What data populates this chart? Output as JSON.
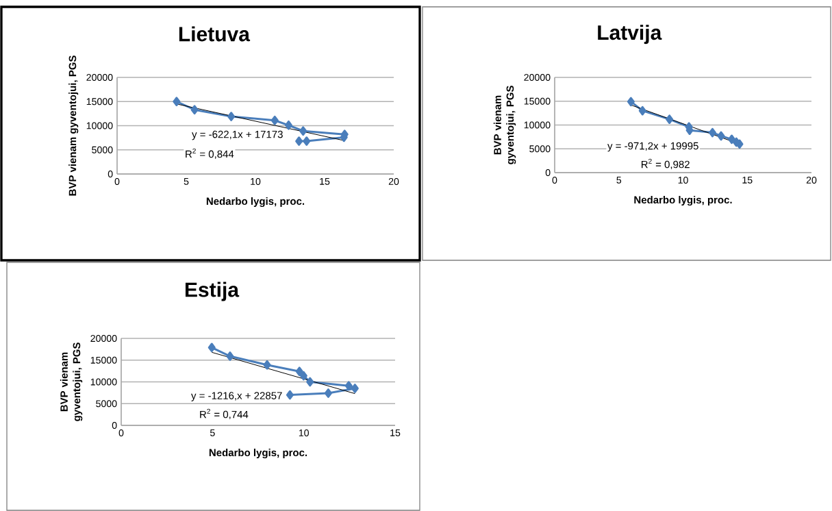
{
  "chart_data": [
    {
      "type": "line",
      "title": "Lietuva",
      "xlabel": "Nedarbo lygis, proc.",
      "ylabel": "BVP vienam gyventojui, PGS",
      "xlim": [
        0,
        20
      ],
      "xticks": [
        0,
        5,
        10,
        15,
        20
      ],
      "ylim": [
        0,
        20000
      ],
      "yticks": [
        0,
        5000,
        10000,
        15000,
        20000
      ],
      "grid": "y",
      "legend": false,
      "annotations": [
        "y = -622,1x + 17173",
        "R$^{2}$ = 0,844"
      ],
      "series": [
        {
          "color": "#4a7ebb",
          "marker": "diamond",
          "x": [
            4.3,
            5.6,
            8.25,
            11.4,
            12.4,
            13.45,
            16.45,
            16.4,
            13.7,
            13.15
          ],
          "values": [
            15000,
            13300,
            11900,
            11100,
            10100,
            8900,
            8200,
            7600,
            6800,
            6800
          ]
        },
        {
          "color": "#000000",
          "marker": "none",
          "x": [
            4.3,
            16.45
          ],
          "values": [
            14500,
            6900
          ]
        }
      ]
    },
    {
      "type": "line",
      "title": "Latvija",
      "xlabel": "Nedarbo lygis, proc.",
      "ylabel": "BVP vienam gyventojui, PGS",
      "xlim": [
        0,
        20
      ],
      "xticks": [
        0,
        5,
        10,
        15,
        20
      ],
      "ylim": [
        0,
        20000
      ],
      "yticks": [
        0,
        5000,
        10000,
        15000,
        20000
      ],
      "grid": "y",
      "legend": false,
      "annotations": [
        "y = -971,2x + 19995",
        "R$^{2}$ = 0,982"
      ],
      "series": [
        {
          "color": "#4a7ebb",
          "marker": "diamond",
          "x": [
            5.94,
            6.84,
            8.94,
            10.46,
            10.51,
            12.29,
            12.96,
            13.79,
            14.15,
            14.4
          ],
          "values": [
            14900,
            13000,
            11200,
            9600,
            8900,
            8400,
            7700,
            7000,
            6400,
            6000
          ]
        },
        {
          "color": "#000000",
          "marker": "none",
          "x": [
            5.94,
            14.4
          ],
          "values": [
            14200,
            6000
          ]
        }
      ]
    },
    {
      "type": "line",
      "title": "Estija",
      "xlabel": "Nedarbo lygis, proc.",
      "ylabel": "BVP vienam gyventojui, PGS",
      "xlim": [
        0,
        15
      ],
      "xticks": [
        0,
        5,
        10,
        15
      ],
      "ylim": [
        0,
        20000
      ],
      "yticks": [
        0,
        5000,
        10000,
        15000,
        20000
      ],
      "grid": "y",
      "legend": false,
      "annotations": [
        "y = -1216,x + 22857",
        "R$^{2}$ = 0,744"
      ],
      "series": [
        {
          "color": "#4a7ebb",
          "marker": "diamond",
          "x": [
            4.96,
            5.96,
            7.99,
            9.76,
            9.99,
            10.34,
            12.46,
            12.8,
            11.34,
            9.24
          ],
          "values": [
            17900,
            15900,
            13900,
            12400,
            11400,
            10000,
            9100,
            8500,
            7400,
            7000
          ]
        },
        {
          "color": "#000000",
          "marker": "none",
          "x": [
            4.96,
            12.8
          ],
          "values": [
            16800,
            7300
          ]
        }
      ]
    }
  ]
}
